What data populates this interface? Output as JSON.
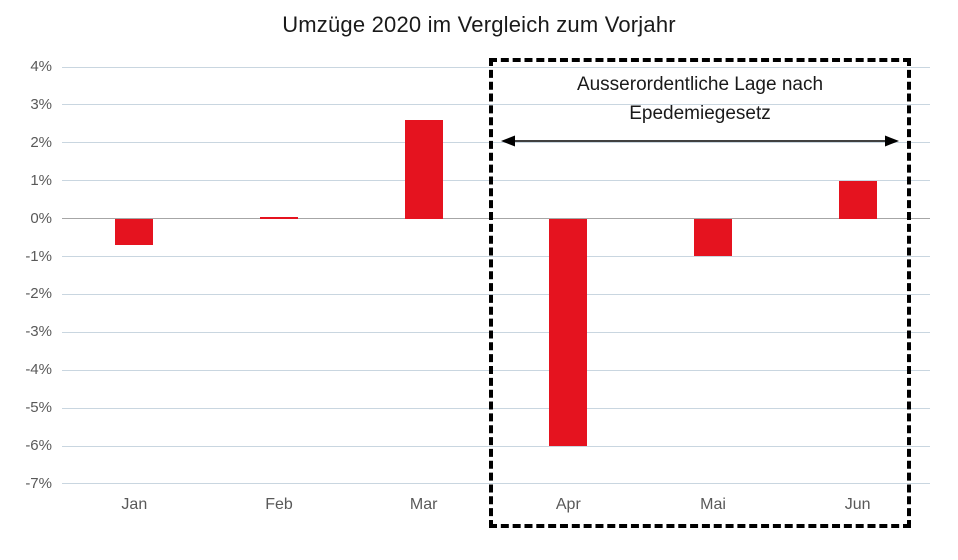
{
  "title": "Umzüge 2020 im Vergleich zum Vorjahr",
  "annotation": {
    "line1": "Ausserordentliche Lage nach",
    "line2": "Epedemiegesetz"
  },
  "colors": {
    "bar": "#E5131F",
    "gridline": "#C9D6E0",
    "zero_line": "#A6A6A6",
    "axis_text": "#595959",
    "title_text": "#1A1A1A",
    "annotation_border": "#000000",
    "arrow": "#000000"
  },
  "chart_data": {
    "type": "bar",
    "title": "Umzüge 2020 im Vergleich zum Vorjahr",
    "categories": [
      "Jan",
      "Feb",
      "Mar",
      "Apr",
      "Mai",
      "Jun"
    ],
    "values": [
      -0.7,
      0.05,
      2.6,
      -6.0,
      -1.0,
      1.0
    ],
    "unit": "%",
    "xlabel": "",
    "ylabel": "",
    "ylim": [
      -7,
      4
    ],
    "ytick_step": 1,
    "ytick_suffix": "%",
    "grid": true,
    "legend": "none",
    "annotation_label": "Ausserordentliche Lage nach Epedemiegesetz",
    "annotation_span_categories": [
      "Apr",
      "Mai",
      "Jun"
    ]
  }
}
